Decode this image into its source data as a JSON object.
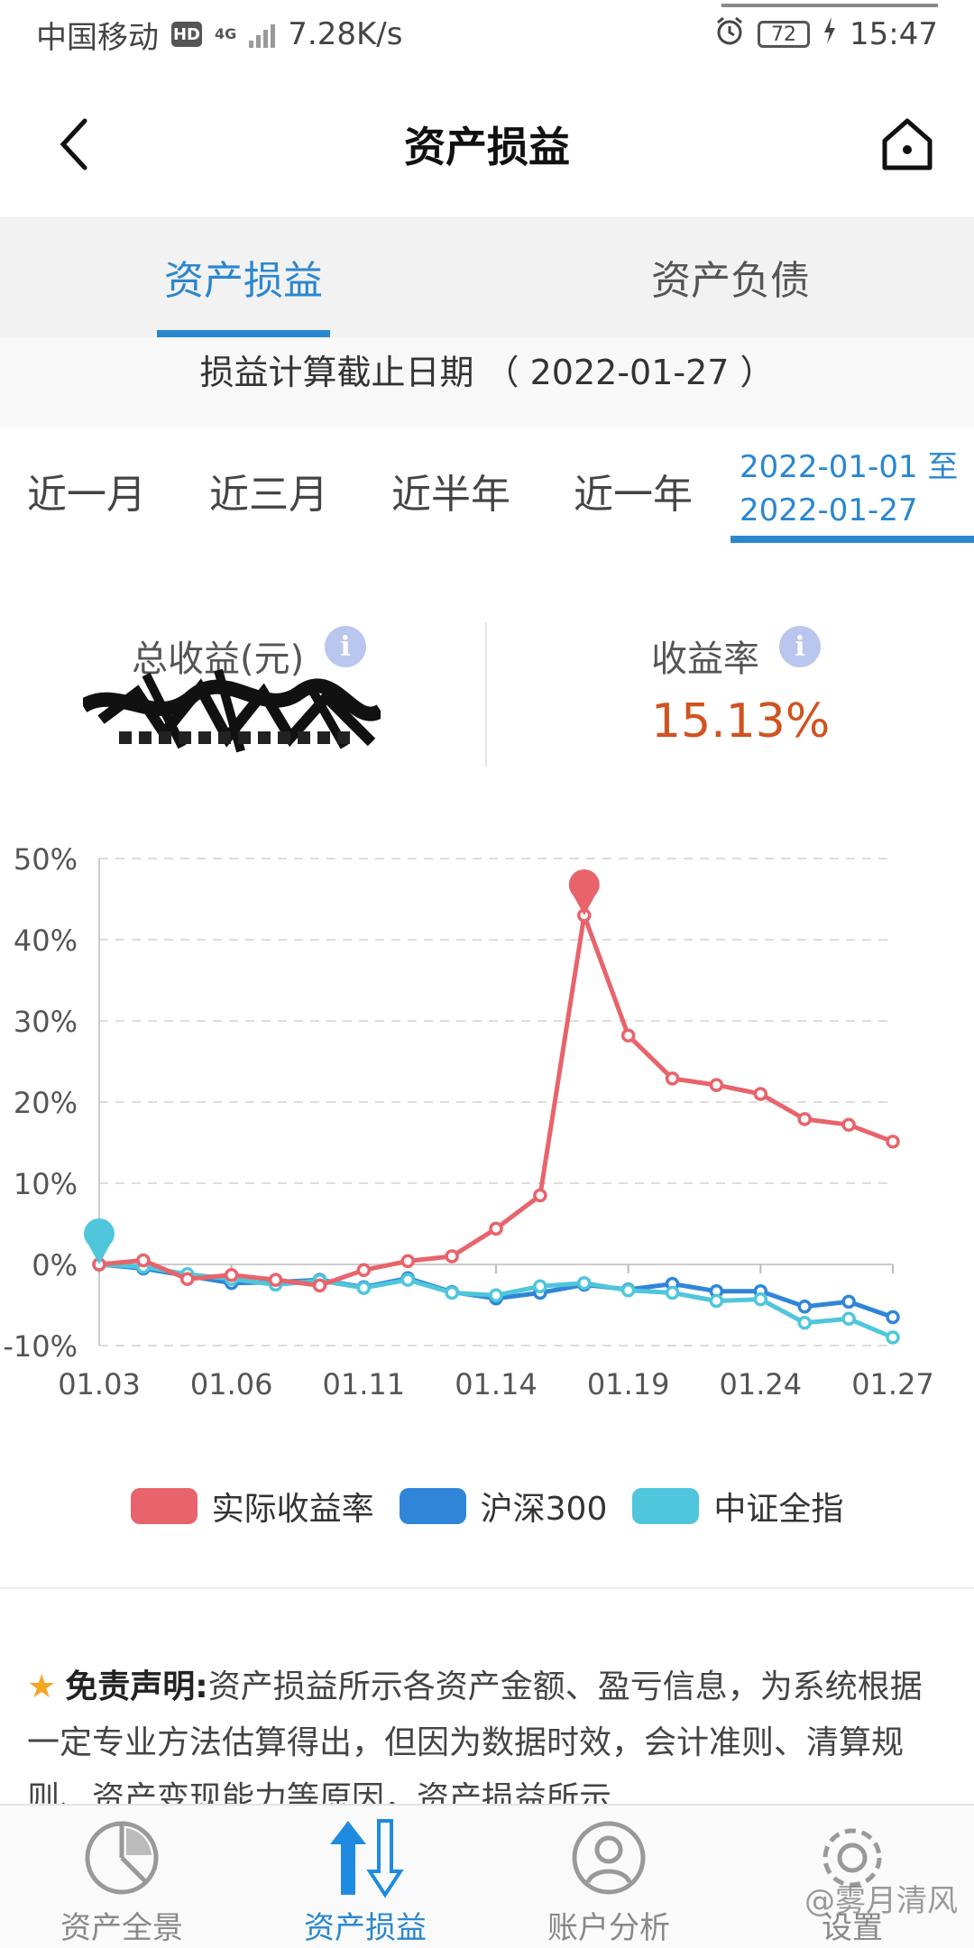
{
  "status_bar": {
    "carrier": "中国移动",
    "hd": "HD",
    "network": "4G",
    "speed": "7.28K/s",
    "battery": "72",
    "time": "15:47"
  },
  "app_bar": {
    "title": "资产损益"
  },
  "tabs": [
    {
      "label": "资产损益",
      "active": true
    },
    {
      "label": "资产负债",
      "active": false
    }
  ],
  "cutoff_text": "损益计算截止日期 （ 2022-01-27 ）",
  "periods": [
    "近一月",
    "近三月",
    "近半年",
    "近一年"
  ],
  "custom_period": {
    "line1": "2022-01-01 至",
    "line2": "2022-01-27"
  },
  "summary": {
    "total_label": "总收益(元)",
    "rate_label": "收益率",
    "rate_value": "15.13%",
    "info_icon": "i"
  },
  "chart_data": {
    "type": "line",
    "x": [
      "01.03",
      "01.04",
      "01.05",
      "01.06",
      "01.07",
      "01.10",
      "01.11",
      "01.12",
      "01.13",
      "01.14",
      "01.17",
      "01.18",
      "01.19",
      "01.20",
      "01.21",
      "01.24",
      "01.25",
      "01.26",
      "01.27"
    ],
    "x_tick_labels": [
      "01.03",
      "01.06",
      "01.11",
      "01.14",
      "01.19",
      "01.24",
      "01.27"
    ],
    "y_tick_labels": [
      "50%",
      "40%",
      "30%",
      "20%",
      "10%",
      "0%",
      "-10%"
    ],
    "ylim": [
      -10,
      50
    ],
    "series": [
      {
        "name": "实际收益率",
        "color": "#e8636b",
        "values": [
          0,
          0.5,
          -1.8,
          -1.3,
          -1.9,
          -2.6,
          -0.7,
          0.4,
          1.0,
          4.4,
          8.5,
          43.0,
          28.2,
          22.9,
          22.1,
          21.0,
          17.9,
          17.2,
          15.13
        ]
      },
      {
        "name": "沪深300",
        "color": "#2f86d8",
        "values": [
          0,
          -0.5,
          -1.4,
          -2.3,
          -2.2,
          -1.9,
          -2.8,
          -1.7,
          -3.4,
          -4.2,
          -3.5,
          -2.5,
          -3.1,
          -2.4,
          -3.3,
          -3.3,
          -5.2,
          -4.6,
          -6.5
        ]
      },
      {
        "name": "中证全指",
        "color": "#4fc6dc",
        "values": [
          0,
          -0.3,
          -1.2,
          -1.8,
          -2.5,
          -2.0,
          -2.9,
          -1.9,
          -3.5,
          -3.8,
          -2.7,
          -2.3,
          -3.2,
          -3.5,
          -4.5,
          -4.3,
          -7.2,
          -6.7,
          -9.0
        ]
      }
    ],
    "markers": [
      {
        "series": "实际收益率",
        "x": "01.18",
        "y": 43.0
      },
      {
        "series": "中证全指",
        "x": "01.03",
        "y": 0
      }
    ],
    "grid": true,
    "legend_position": "bottom"
  },
  "disclaimer": {
    "title": "免责声明:",
    "text": "资产损益所示各资产金额、盈亏信息，为系统根据一定专业方法估算得出，但因为数据时效，会计准则、清算规则、资产变现能力等原因，资产损益所示"
  },
  "bottom_nav": [
    {
      "label": "资产全景",
      "icon": "pie-chart-icon",
      "active": false
    },
    {
      "label": "资产损益",
      "icon": "up-down-arrows-icon",
      "active": true
    },
    {
      "label": "账户分析",
      "icon": "user-circle-icon",
      "active": false
    },
    {
      "label": "设置",
      "icon": "gear-icon",
      "active": false
    }
  ],
  "watermark": "@雾月清风"
}
